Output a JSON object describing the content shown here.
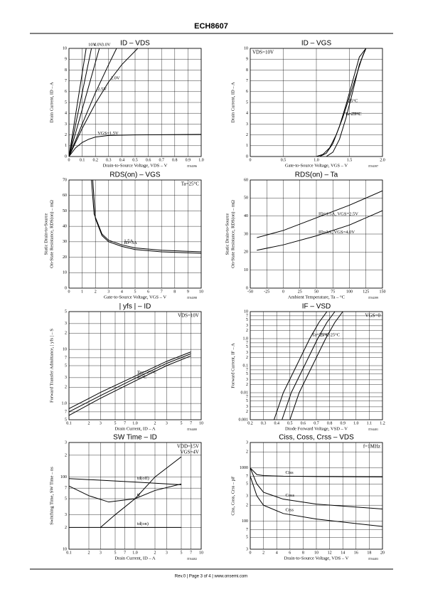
{
  "header": {
    "title": "ECH8607"
  },
  "footer": {
    "text": "Rev.0 | Page 3 of 4 | www.onsemi.com"
  },
  "chart_data": [
    {
      "type": "line",
      "title": "ID – VDS",
      "xlabel": "Drain-to-Source Voltage, VDS – V",
      "ylabel": [
        "Drain Current, ID – A"
      ],
      "code": "IT04396",
      "xlim": [
        0,
        1
      ],
      "xticks": [
        0,
        0.1,
        0.2,
        0.3,
        0.4,
        0.5,
        0.6,
        0.7,
        0.8,
        0.9,
        {
          "value": 1,
          "label": "1.0"
        }
      ],
      "ylim": [
        0,
        10
      ],
      "yticks": [
        0,
        1,
        2,
        3,
        4,
        5,
        6,
        7,
        8,
        9,
        10
      ],
      "grid": true,
      "series": [
        {
          "name": "10V",
          "color": "#000",
          "x": [
            0,
            0.13
          ],
          "values": [
            0,
            10
          ]
        },
        {
          "name": "4.0V",
          "color": "#000",
          "x": [
            0,
            0.17
          ],
          "values": [
            0,
            10
          ]
        },
        {
          "name": "3.0V",
          "color": "#000",
          "x": [
            0,
            0.23
          ],
          "values": [
            0,
            10
          ]
        },
        {
          "name": "2.5V",
          "color": "#000",
          "x": [
            0,
            0.1,
            0.2,
            0.3,
            0.36
          ],
          "values": [
            0,
            3,
            5.9,
            8.5,
            10
          ]
        },
        {
          "name": "2.0V",
          "color": "#000",
          "x": [
            0,
            0.1,
            0.2,
            0.3,
            0.4,
            0.52
          ],
          "values": [
            0,
            2.6,
            4.9,
            6.9,
            8.5,
            10
          ]
        },
        {
          "name": "VGS=1.5V",
          "color": "#000",
          "x": [
            0,
            0.05,
            0.1,
            0.15,
            0.2,
            0.3,
            0.5,
            1
          ],
          "values": [
            0,
            0.8,
            1.3,
            1.6,
            1.8,
            1.95,
            2,
            2.05
          ]
        }
      ]
    },
    {
      "type": "line",
      "title": "ID – VGS",
      "xlabel": "Gate-to-Source Voltage, VGS – V",
      "ylabel": [
        "Drain Current, ID – A"
      ],
      "code": "IT04397",
      "annotations": [
        "VDS=10V"
      ],
      "annotation_corner": "upper left",
      "xlim": [
        0,
        2
      ],
      "xticks": [
        0,
        0.5,
        {
          "value": 1,
          "label": "1.0"
        },
        1.5,
        {
          "value": 2,
          "label": "2.0"
        }
      ],
      "ylim": [
        0,
        10
      ],
      "yticks": [
        0,
        1,
        2,
        3,
        4,
        5,
        6,
        7,
        8,
        9,
        10
      ],
      "grid": true,
      "series": [
        {
          "name": "Ta=75°C",
          "color": "#000",
          "x": [
            1,
            1.1,
            1.2,
            1.3,
            1.4,
            1.5,
            1.6,
            1.7,
            1.75
          ],
          "values": [
            0,
            0.2,
            0.8,
            2,
            3.6,
            5.5,
            7.4,
            9.3,
            10
          ]
        },
        {
          "name": "25°C",
          "color": "#000",
          "x": [
            1.05,
            1.15,
            1.25,
            1.35,
            1.45,
            1.55,
            1.65,
            1.75
          ],
          "values": [
            0,
            0.3,
            1.2,
            2.8,
            4.8,
            7,
            9.2,
            10
          ]
        },
        {
          "name": "−25°C",
          "color": "#000",
          "x": [
            1.15,
            1.25,
            1.35,
            1.45,
            1.55,
            1.65,
            1.75
          ],
          "values": [
            0,
            0.4,
            1.6,
            3.6,
            6,
            8.5,
            10
          ]
        }
      ]
    },
    {
      "type": "line",
      "title": "RDS(on) – VGS",
      "xlabel": "Gate-to-Source Voltage, VGS – V",
      "ylabel": [
        "Static Drain-to-Source",
        "On-State Resistance, RDS(on) – mΩ"
      ],
      "code": "IT04398",
      "annotations": [
        "Ta=25°C"
      ],
      "annotation_corner": "upper right",
      "xlim": [
        0,
        10
      ],
      "xticks": [
        0,
        1,
        2,
        3,
        4,
        5,
        6,
        7,
        8,
        9,
        10
      ],
      "ylim": [
        0,
        70
      ],
      "yticks": [
        0,
        10,
        20,
        30,
        40,
        50,
        60,
        70
      ],
      "grid": true,
      "series": [
        {
          "name": "ID=3A",
          "color": "#000",
          "x": [
            1.8,
            2,
            2.5,
            3,
            4,
            5,
            7,
            10
          ],
          "values": [
            70,
            45,
            34,
            30,
            27,
            25,
            23.5,
            22.5
          ]
        },
        {
          "name": "1.5A",
          "color": "#000",
          "x": [
            1.7,
            1.9,
            2.5,
            3,
            4,
            5,
            7,
            10
          ],
          "values": [
            70,
            48,
            35,
            31,
            28,
            26,
            24.5,
            23.5
          ]
        }
      ]
    },
    {
      "type": "line",
      "title": "RDS(on) – Ta",
      "xlabel": "Ambient Temperature, Ta – °C",
      "ylabel": [
        "Static Drain-to-Source",
        "On-State Resistance, RDS(on) – mΩ"
      ],
      "code": "IT04399",
      "xlim": [
        -50,
        150
      ],
      "xticks": [
        -50,
        -25,
        0,
        25,
        50,
        75,
        100,
        125,
        150
      ],
      "ylim": [
        0,
        60
      ],
      "yticks": [
        0,
        10,
        20,
        30,
        40,
        50,
        60
      ],
      "grid": true,
      "series": [
        {
          "name": "ID=1.5A, VGS=2.5V",
          "color": "#000",
          "x": [
            -40,
            0,
            50,
            100,
            150
          ],
          "values": [
            28,
            32,
            39,
            46,
            54
          ]
        },
        {
          "name": "ID=3A, VGS=4.0V",
          "color": "#000",
          "x": [
            -40,
            0,
            50,
            100,
            150
          ],
          "values": [
            21,
            24,
            29,
            35,
            43
          ]
        }
      ]
    },
    {
      "type": "line",
      "title": "| yfs | – ID",
      "xlabel": "Drain Current, ID – A",
      "ylabel": [
        "Forward Transfer Admittance, | yfs | – S"
      ],
      "code": "IT04400",
      "annotations": [
        "VDS=10V"
      ],
      "annotation_corner": "upper right",
      "xscale": "log",
      "yscale": "log",
      "xlim": [
        0.1,
        10
      ],
      "xticks": [
        0.1,
        {
          "value": 0.2,
          "label": "2"
        },
        {
          "value": 0.3,
          "label": "3"
        },
        {
          "value": 0.5,
          "label": "5"
        },
        {
          "value": 0.7,
          "label": "7"
        },
        {
          "value": 1,
          "label": "1.0"
        },
        2,
        3,
        5,
        7,
        10
      ],
      "ylim": [
        0.5,
        50
      ],
      "yticks": [
        {
          "value": 0.5,
          "label": "5"
        },
        {
          "value": 0.7,
          "label": "7"
        },
        {
          "value": 1,
          "label": "1.0"
        },
        2,
        3,
        5,
        7,
        10,
        {
          "value": 20,
          "label": "2"
        },
        {
          "value": 30,
          "label": "3"
        },
        {
          "value": 50,
          "label": "5"
        }
      ],
      "grid": true,
      "series": [
        {
          "name": "Ta=−25°C",
          "color": "#000",
          "x": [
            0.1,
            0.3,
            1,
            3,
            7
          ],
          "values": [
            0.8,
            1.6,
            3.2,
            6,
            9
          ]
        },
        {
          "name": "75°C",
          "color": "#000",
          "x": [
            0.1,
            0.3,
            1,
            3,
            7
          ],
          "values": [
            0.7,
            1.4,
            2.9,
            5.5,
            8.3
          ]
        },
        {
          "name": "25°C",
          "color": "#000",
          "x": [
            0.1,
            0.3,
            1,
            3,
            7
          ],
          "values": [
            0.6,
            1.25,
            2.6,
            5,
            7.6
          ]
        }
      ]
    },
    {
      "type": "line",
      "title": "IF – VSD",
      "xlabel": "Diode Forward Voltage, VSD – V",
      "ylabel": [
        "Forward Current, IF – A"
      ],
      "code": "IT04401",
      "annotations": [
        "VGS=0"
      ],
      "annotation_corner": "upper right",
      "yscale": "log",
      "xlim": [
        0.2,
        1.2
      ],
      "xticks": [
        0.2,
        0.3,
        0.4,
        0.5,
        0.6,
        0.7,
        0.8,
        0.9,
        {
          "value": 1,
          "label": "1.0"
        },
        1.1,
        1.2
      ],
      "ylim": [
        0.001,
        10
      ],
      "yticks": [
        0.001,
        {
          "value": 0.002,
          "label": "2"
        },
        {
          "value": 0.003,
          "label": "3"
        },
        {
          "value": 0.005,
          "label": "5"
        },
        {
          "value": 0.007,
          "label": "7"
        },
        0.01,
        {
          "value": 0.02,
          "label": "2"
        },
        {
          "value": 0.03,
          "label": "3"
        },
        {
          "value": 0.05,
          "label": "5"
        },
        {
          "value": 0.07,
          "label": "7"
        },
        0.1,
        {
          "value": 0.2,
          "label": "2"
        },
        {
          "value": 0.3,
          "label": "3"
        },
        {
          "value": 0.5,
          "label": "5"
        },
        {
          "value": 0.7,
          "label": "7"
        },
        {
          "value": 1,
          "label": "1.0"
        },
        2,
        3,
        5,
        7,
        10
      ],
      "grid": true,
      "series": [
        {
          "name": "Ta=75°C",
          "color": "#000",
          "x": [
            0.38,
            0.45,
            0.55,
            0.65,
            0.72,
            0.78
          ],
          "values": [
            0.001,
            0.01,
            0.1,
            1,
            4,
            10
          ]
        },
        {
          "name": "25°C",
          "color": "#000",
          "x": [
            0.44,
            0.51,
            0.61,
            0.71,
            0.78,
            0.84
          ],
          "values": [
            0.001,
            0.01,
            0.1,
            1,
            4,
            10
          ]
        },
        {
          "name": "−25°C",
          "color": "#000",
          "x": [
            0.5,
            0.57,
            0.67,
            0.77,
            0.84,
            0.9
          ],
          "values": [
            0.001,
            0.01,
            0.1,
            1,
            4,
            10
          ]
        }
      ]
    },
    {
      "type": "line",
      "title": "SW Time – ID",
      "xlabel": "Drain Current, ID – A",
      "ylabel": [
        "Switching Time, SW Time – ns"
      ],
      "code": "IT04402",
      "annotations": [
        "VDD=15V",
        "VGS=4V"
      ],
      "annotation_corner": "upper right",
      "xscale": "log",
      "yscale": "log",
      "xlim": [
        0.1,
        10
      ],
      "xticks": [
        0.1,
        {
          "value": 0.2,
          "label": "2"
        },
        {
          "value": 0.3,
          "label": "3"
        },
        {
          "value": 0.5,
          "label": "5"
        },
        {
          "value": 0.7,
          "label": "7"
        },
        {
          "value": 1,
          "label": "1.0"
        },
        2,
        3,
        5,
        7,
        10
      ],
      "ylim": [
        10,
        300
      ],
      "yticks": [
        10,
        {
          "value": 20,
          "label": "2"
        },
        {
          "value": 30,
          "label": "3"
        },
        {
          "value": 50,
          "label": "5"
        },
        {
          "value": 70,
          "label": "7"
        },
        100,
        {
          "value": 200,
          "label": "2"
        },
        {
          "value": 300,
          "label": "3"
        }
      ],
      "grid": true,
      "series": [
        {
          "name": "td(off)",
          "color": "#000",
          "x": [
            0.1,
            1,
            5
          ],
          "values": [
            95,
            85,
            78
          ]
        },
        {
          "name": "tf",
          "color": "#000",
          "x": [
            0.1,
            0.2,
            0.4,
            1,
            2,
            5
          ],
          "values": [
            75,
            55,
            45,
            50,
            65,
            80
          ]
        },
        {
          "name": "tr",
          "color": "#000",
          "x": [
            0.3,
            0.5,
            1,
            2,
            5
          ],
          "values": [
            20,
            30,
            50,
            100,
            190
          ]
        },
        {
          "name": "td(on)",
          "color": "#000",
          "x": [
            0.1,
            1,
            5
          ],
          "values": [
            20,
            20,
            20
          ]
        }
      ]
    },
    {
      "type": "line",
      "title": "Ciss, Coss, Crss – VDS",
      "xlabel": "Drain-to-Source Voltage, VDS – V",
      "ylabel": [
        "Ciss, Coss, Crss – pF"
      ],
      "code": "IT04403",
      "annotations": [
        "f=1MHz"
      ],
      "annotation_corner": "upper right",
      "yscale": "log",
      "xlim": [
        0,
        20
      ],
      "xticks": [
        0,
        2,
        4,
        6,
        8,
        10,
        12,
        14,
        16,
        18,
        20
      ],
      "ylim": [
        30,
        3000
      ],
      "yticks": [
        {
          "value": 30,
          "label": "3"
        },
        {
          "value": 50,
          "label": "5"
        },
        {
          "value": 70,
          "label": "7"
        },
        100,
        {
          "value": 200,
          "label": "2"
        },
        {
          "value": 300,
          "label": "3"
        },
        {
          "value": 500,
          "label": "5"
        },
        {
          "value": 700,
          "label": "7"
        },
        1000,
        {
          "value": 2000,
          "label": "2"
        },
        {
          "value": 3000,
          "label": "3"
        }
      ],
      "grid": true,
      "series": [
        {
          "name": "Ciss",
          "color": "#000",
          "x": [
            0,
            1,
            2,
            5,
            10,
            20
          ],
          "values": [
            1000,
            750,
            720,
            700,
            690,
            680
          ]
        },
        {
          "name": "Coss",
          "color": "#000",
          "x": [
            0,
            1,
            2,
            5,
            10,
            20
          ],
          "values": [
            1000,
            500,
            350,
            260,
            210,
            170
          ]
        },
        {
          "name": "Crss",
          "color": "#000",
          "x": [
            0,
            1,
            2,
            5,
            10,
            20
          ],
          "values": [
            700,
            300,
            200,
            140,
            110,
            80
          ]
        }
      ]
    }
  ]
}
